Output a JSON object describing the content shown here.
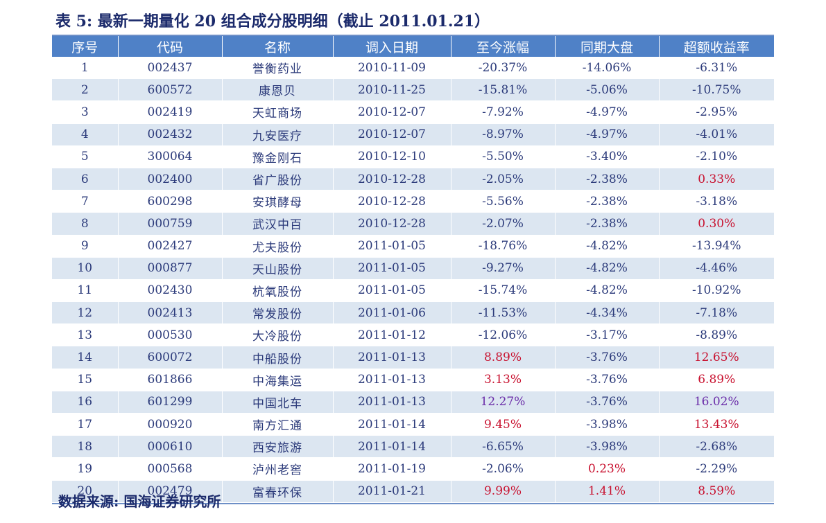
{
  "title": "表 5: 最新一期量化 20 组合成分股明细（截止 2011.01.21）",
  "source": "数据来源: 国海证券研究所",
  "colors": {
    "header_bg": "#4f81c7",
    "alt_row_bg": "#dce6f1",
    "positive": "#c8102e",
    "highlight": "#6a2ca8"
  },
  "headers": [
    "序号",
    "代码",
    "名称",
    "调入日期",
    "至今涨幅",
    "同期大盘",
    "超额收益率"
  ],
  "rows": [
    {
      "no": "1",
      "code": "002437",
      "name": "誉衡药业",
      "date": "2010-11-09",
      "gain": "-20.37%",
      "market": "-14.06%",
      "excess": "-6.31%"
    },
    {
      "no": "2",
      "code": "600572",
      "name": "康恩贝",
      "date": "2010-11-25",
      "gain": "-15.81%",
      "market": "-5.06%",
      "excess": "-10.75%"
    },
    {
      "no": "3",
      "code": "002419",
      "name": "天虹商场",
      "date": "2010-12-07",
      "gain": "-7.92%",
      "market": "-4.97%",
      "excess": "-2.95%"
    },
    {
      "no": "4",
      "code": "002432",
      "name": "九安医疗",
      "date": "2010-12-07",
      "gain": "-8.97%",
      "market": "-4.97%",
      "excess": "-4.01%"
    },
    {
      "no": "5",
      "code": "300064",
      "name": "豫金刚石",
      "date": "2010-12-10",
      "gain": "-5.50%",
      "market": "-3.40%",
      "excess": "-2.10%"
    },
    {
      "no": "6",
      "code": "002400",
      "name": "省广股份",
      "date": "2010-12-28",
      "gain": "-2.05%",
      "market": "-2.38%",
      "excess": "0.33%"
    },
    {
      "no": "7",
      "code": "600298",
      "name": "安琪酵母",
      "date": "2010-12-28",
      "gain": "-5.56%",
      "market": "-2.38%",
      "excess": "-3.18%"
    },
    {
      "no": "8",
      "code": "000759",
      "name": "武汉中百",
      "date": "2010-12-28",
      "gain": "-2.07%",
      "market": "-2.38%",
      "excess": "0.30%"
    },
    {
      "no": "9",
      "code": "002427",
      "name": "尤夫股份",
      "date": "2011-01-05",
      "gain": "-18.76%",
      "market": "-4.82%",
      "excess": "-13.94%"
    },
    {
      "no": "10",
      "code": "000877",
      "name": "天山股份",
      "date": "2011-01-05",
      "gain": "-9.27%",
      "market": "-4.82%",
      "excess": "-4.46%"
    },
    {
      "no": "11",
      "code": "002430",
      "name": "杭氧股份",
      "date": "2011-01-05",
      "gain": "-15.74%",
      "market": "-4.82%",
      "excess": "-10.92%"
    },
    {
      "no": "12",
      "code": "002413",
      "name": "常发股份",
      "date": "2011-01-06",
      "gain": "-11.53%",
      "market": "-4.34%",
      "excess": "-7.18%"
    },
    {
      "no": "13",
      "code": "000530",
      "name": "大冷股份",
      "date": "2011-01-12",
      "gain": "-12.06%",
      "market": "-3.17%",
      "excess": "-8.89%"
    },
    {
      "no": "14",
      "code": "600072",
      "name": "中船股份",
      "date": "2011-01-13",
      "gain": "8.89%",
      "market": "-3.76%",
      "excess": "12.65%"
    },
    {
      "no": "15",
      "code": "601866",
      "name": "中海集运",
      "date": "2011-01-13",
      "gain": "3.13%",
      "market": "-3.76%",
      "excess": "6.89%"
    },
    {
      "no": "16",
      "code": "601299",
      "name": "中国北车",
      "date": "2011-01-13",
      "gain": "12.27%",
      "market": "-3.76%",
      "excess": "16.02%"
    },
    {
      "no": "17",
      "code": "000920",
      "name": "南方汇通",
      "date": "2011-01-14",
      "gain": "9.45%",
      "market": "-3.98%",
      "excess": "13.43%"
    },
    {
      "no": "18",
      "code": "000610",
      "name": "西安旅游",
      "date": "2011-01-14",
      "gain": "-6.65%",
      "market": "-3.98%",
      "excess": "-2.68%"
    },
    {
      "no": "19",
      "code": "000568",
      "name": "泸州老窖",
      "date": "2011-01-19",
      "gain": "-2.06%",
      "market": "0.23%",
      "excess": "-2.29%"
    },
    {
      "no": "20",
      "code": "002479",
      "name": "富春环保",
      "date": "2011-01-21",
      "gain": "9.99%",
      "market": "1.41%",
      "excess": "8.59%"
    }
  ],
  "highlighted_row": "16"
}
